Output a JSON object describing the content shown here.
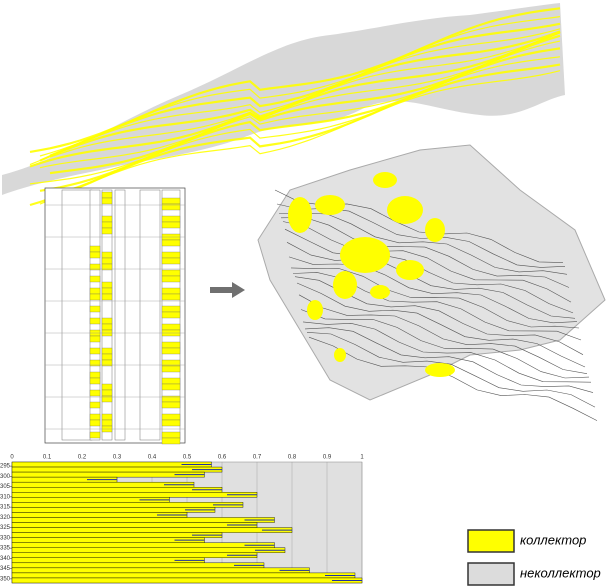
{
  "bottom_chart": {
    "xticks": [
      0,
      0.1,
      0.2,
      0.3,
      0.4,
      0.5,
      0.6,
      0.7,
      0.8,
      0.9,
      1
    ],
    "yticks": [
      295,
      300,
      305,
      310,
      315,
      320,
      325,
      330,
      335,
      340,
      345,
      350
    ],
    "ylim": [
      293,
      352
    ],
    "values": [
      0.57,
      0.6,
      0.55,
      0.3,
      0.52,
      0.6,
      0.7,
      0.45,
      0.66,
      0.58,
      0.5,
      0.75,
      0.7,
      0.8,
      0.6,
      0.55,
      0.75,
      0.78,
      0.7,
      0.55,
      0.72,
      0.85,
      0.98,
      1.0
    ]
  },
  "legend": [
    {
      "label": "коллектор",
      "color": "#ffff00"
    },
    {
      "label": "неколлектор",
      "color": "#dcdcdc"
    }
  ]
}
